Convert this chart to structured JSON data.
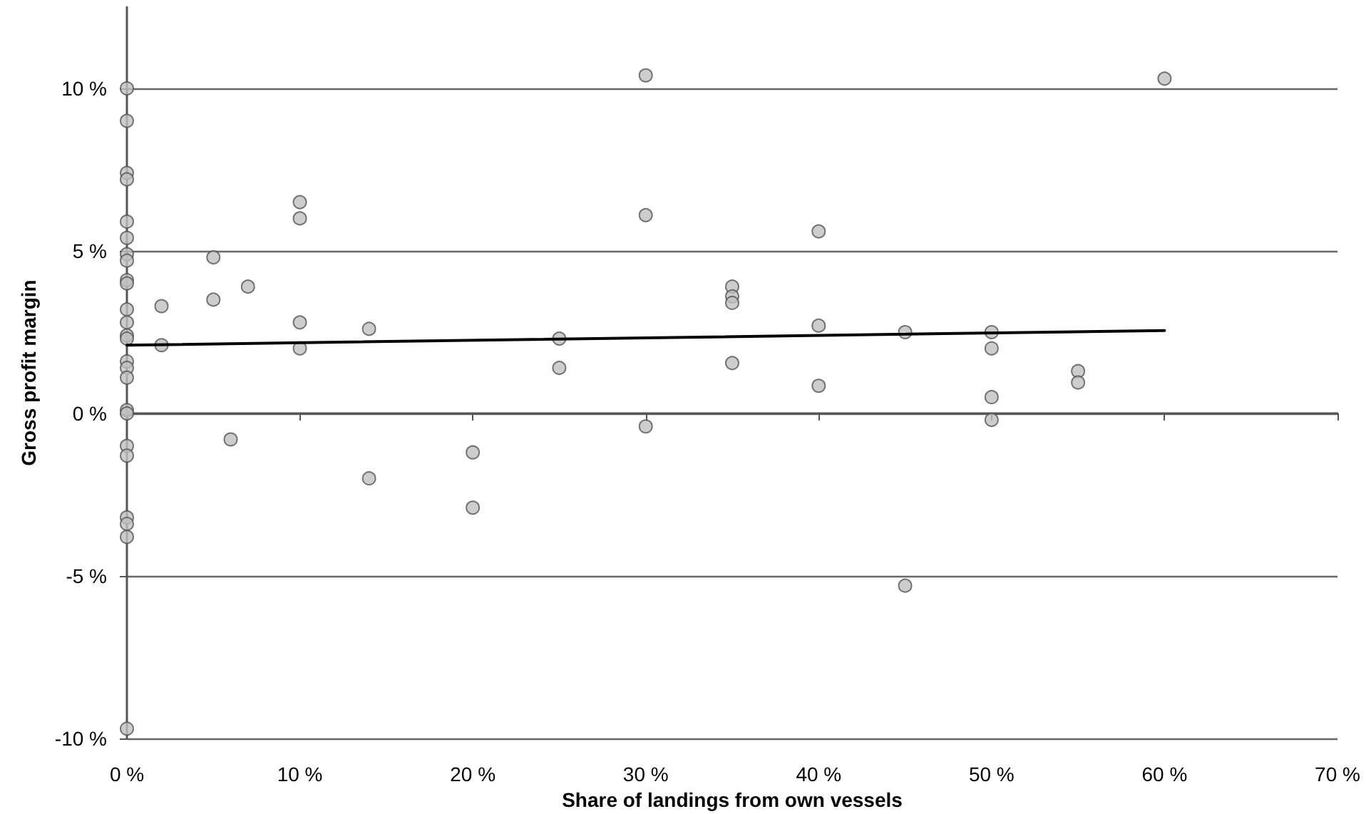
{
  "chart_data": {
    "type": "scatter",
    "xlabel": "Share of landings from own vessels",
    "ylabel": "Gross profit margin",
    "xlim": [
      0,
      70
    ],
    "ylim": [
      -10,
      12.5
    ],
    "xticks": [
      {
        "value": 0,
        "label": "0 %"
      },
      {
        "value": 10,
        "label": "10 %"
      },
      {
        "value": 20,
        "label": "20 %"
      },
      {
        "value": 30,
        "label": "30 %"
      },
      {
        "value": 40,
        "label": "40 %"
      },
      {
        "value": 50,
        "label": "50 %"
      },
      {
        "value": 60,
        "label": "60 %"
      },
      {
        "value": 70,
        "label": "70 %"
      }
    ],
    "yticks": [
      {
        "value": -10,
        "label": "-10 %"
      },
      {
        "value": -5,
        "label": "-5 %"
      },
      {
        "value": 0,
        "label": "0 %"
      },
      {
        "value": 5,
        "label": "5 %"
      },
      {
        "value": 10,
        "label": "10 %"
      }
    ],
    "grid": "y",
    "marker": "circle",
    "series": [
      {
        "color": "#c0c0c0",
        "x": [
          0,
          0,
          0,
          0,
          0,
          0,
          0,
          0,
          0,
          0,
          0,
          0,
          0,
          0,
          0,
          0,
          0,
          0,
          0,
          0,
          0,
          0,
          0,
          0,
          0,
          2,
          2,
          5,
          5,
          6,
          7,
          10,
          10,
          10,
          10,
          14,
          14,
          20,
          20,
          25,
          25,
          30,
          30,
          30,
          35,
          35,
          35,
          35,
          40,
          40,
          40,
          45,
          45,
          50,
          50,
          50,
          50,
          55,
          55,
          60
        ],
        "values": [
          10,
          9,
          7.4,
          7.2,
          5.9,
          5.4,
          4.9,
          4.7,
          4.1,
          4,
          3.2,
          2.8,
          2.4,
          2.3,
          1.6,
          1.4,
          1.1,
          0.1,
          0,
          -1,
          -1.3,
          -3.2,
          -3.4,
          -3.8,
          -9.7,
          3.3,
          2.1,
          4.8,
          3.5,
          -0.8,
          3.9,
          6.5,
          6,
          2.8,
          2,
          2.6,
          -2,
          -1.2,
          -2.9,
          2.3,
          1.4,
          10.4,
          6.1,
          -0.4,
          3.9,
          3.6,
          3.4,
          1.55,
          5.6,
          2.7,
          0.85,
          2.5,
          -5.3,
          2.5,
          2,
          0.5,
          -0.2,
          1.3,
          0.95,
          10.3
        ]
      },
      {
        "type": "line",
        "color": "#000000",
        "marker": "none",
        "x": [
          0,
          60
        ],
        "values": [
          2.1,
          2.55
        ]
      }
    ]
  }
}
